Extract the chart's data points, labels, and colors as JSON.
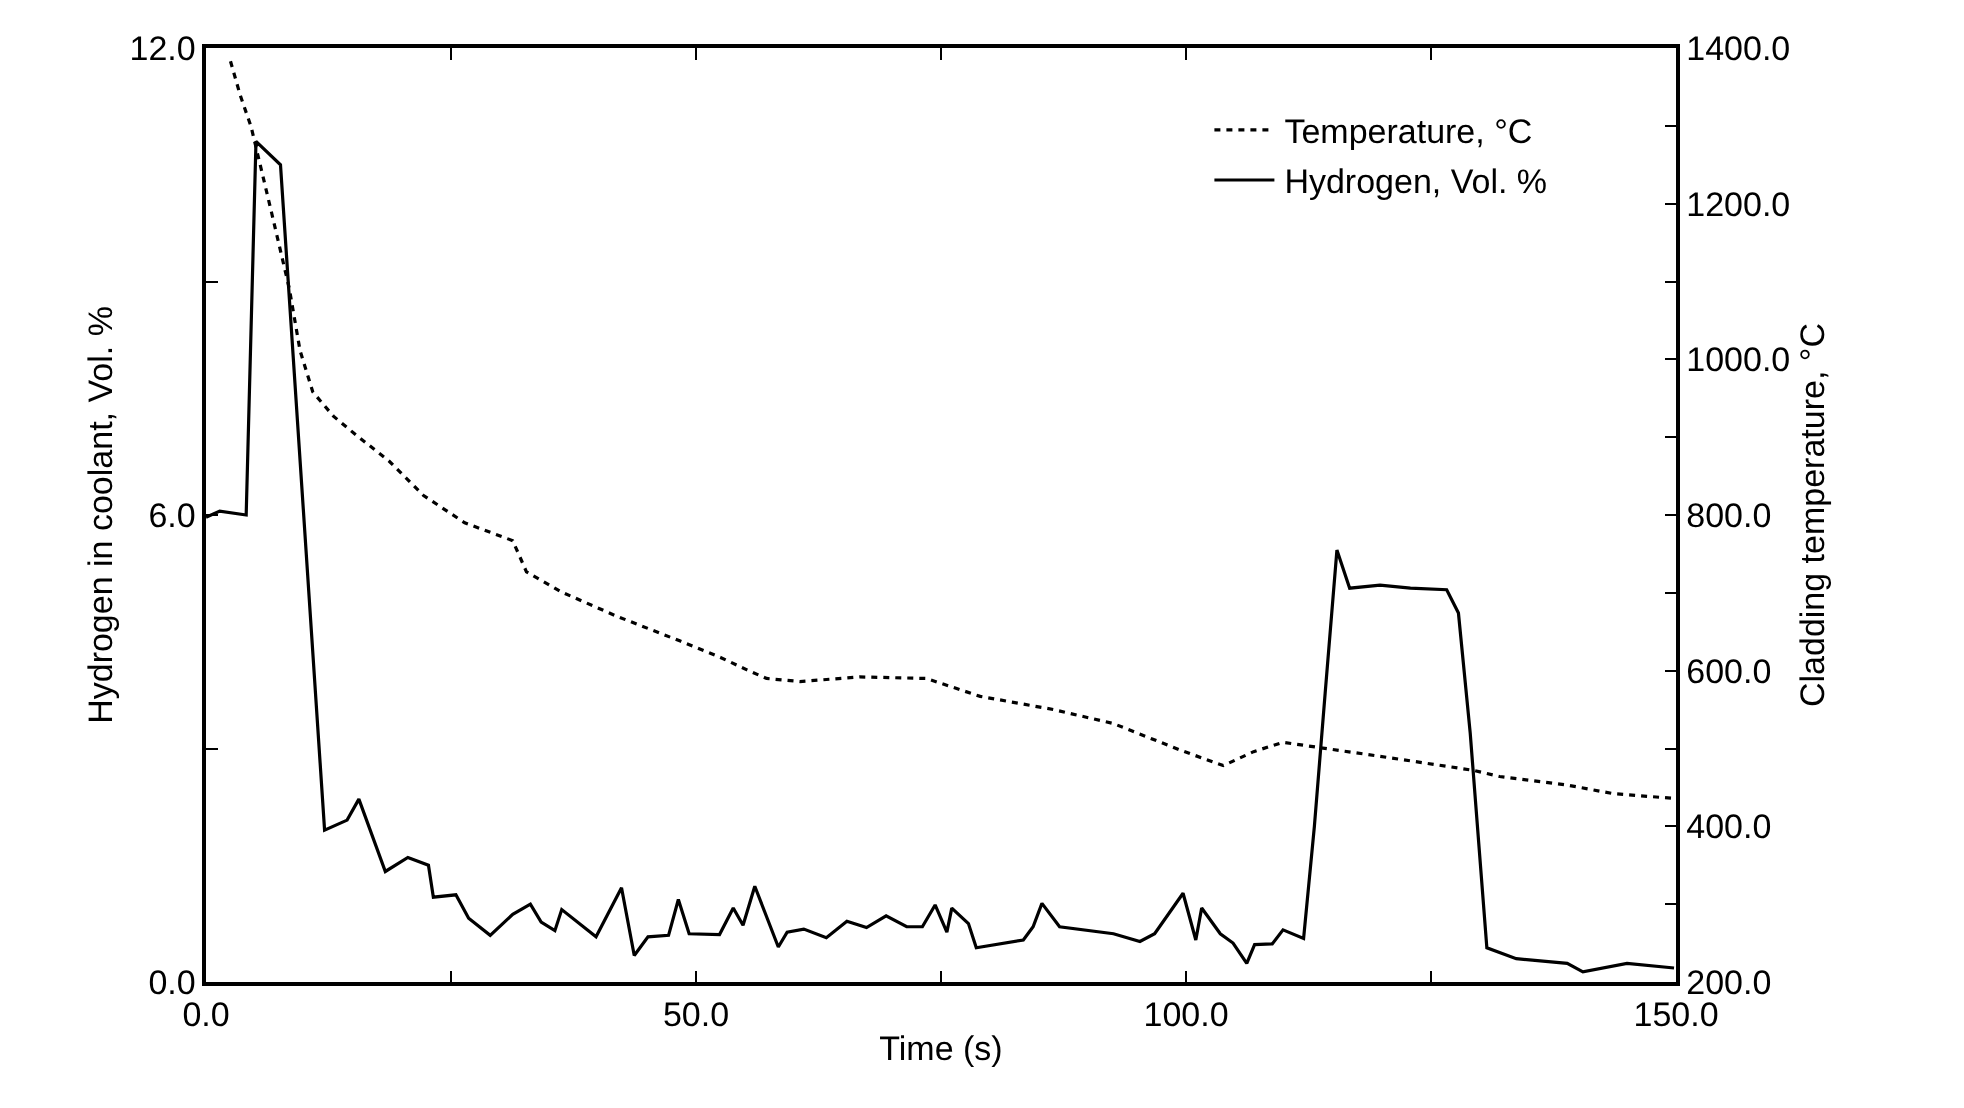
{
  "chart_data": {
    "type": "line",
    "xlabel": "Time (s)",
    "ylabel": "Hydrogen in coolant, Vol. %",
    "y2label": "Cladding temperature, °C",
    "xlim": [
      0,
      150
    ],
    "xticks": [
      {
        "value": 0,
        "label": "0.0"
      },
      {
        "value": 25,
        "label": null
      },
      {
        "value": 50,
        "label": "50.0"
      },
      {
        "value": 75,
        "label": null
      },
      {
        "value": 100,
        "label": "100.0"
      },
      {
        "value": 125,
        "label": null
      },
      {
        "value": 150,
        "label": "150.0"
      }
    ],
    "ylim": [
      0,
      12
    ],
    "yticks": [
      {
        "value": 0,
        "label": "0.0"
      },
      {
        "value": 3,
        "label": null
      },
      {
        "value": 6,
        "label": "6.0"
      },
      {
        "value": 9,
        "label": null
      },
      {
        "value": 12,
        "label": "12.0"
      }
    ],
    "y2lim": [
      200,
      1400
    ],
    "y2ticks": [
      {
        "value": 200,
        "label": "200.0"
      },
      {
        "value": 300,
        "label": null
      },
      {
        "value": 400,
        "label": "400.0"
      },
      {
        "value": 500,
        "label": null
      },
      {
        "value": 600,
        "label": "600.0"
      },
      {
        "value": 700,
        "label": null
      },
      {
        "value": 800,
        "label": "800.0"
      },
      {
        "value": 900,
        "label": null
      },
      {
        "value": 1000,
        "label": "1000.0"
      },
      {
        "value": 1100,
        "label": null
      },
      {
        "value": 1200,
        "label": "1200.0"
      },
      {
        "value": 1300,
        "label": null
      },
      {
        "value": 1400,
        "label": "1400.0"
      }
    ],
    "legend": "top right",
    "marker": "none",
    "series": [
      {
        "name": "Temperature, °C",
        "color": "#000000",
        "line_style": "dotted",
        "axis": "y2",
        "x": [
          2.5,
          3.5,
          4.6,
          6.7,
          8.5,
          9.6,
          10.9,
          13.0,
          15.1,
          18.7,
          22.2,
          26.4,
          31.3,
          32.7,
          36.3,
          41.9,
          48.4,
          52.5,
          55.2,
          57.2,
          60.6,
          66.7,
          73.5,
          79.0,
          86.5,
          92.6,
          99.4,
          103.8,
          106.9,
          109.9,
          113.7,
          119.8,
          129.3,
          132.0,
          138.9,
          143.6,
          149.7
        ],
        "values": [
          1383,
          1339,
          1299,
          1188,
          1091,
          1011,
          958,
          927,
          905,
          869,
          825,
          790,
          767,
          727,
          701,
          670,
          638,
          617,
          601,
          590,
          586,
          592,
          590,
          567,
          550,
          532,
          498,
          478,
          496,
          508,
          501,
          490,
          472,
          464,
          453,
          442,
          436
        ]
      },
      {
        "name": "Hydrogen, Vol. %",
        "color": "#000000",
        "line_style": "solid",
        "x": [
          0,
          1.4,
          4.1,
          5.1,
          7.6,
          12.1,
          14.4,
          15.6,
          18.3,
          20.6,
          22.7,
          23.2,
          25.5,
          26.8,
          29.0,
          31.3,
          33.1,
          34.2,
          35.6,
          36.3,
          39.8,
          42.4,
          43.7,
          45.1,
          47.2,
          48.2,
          49.3,
          52.4,
          53.8,
          54.8,
          56.0,
          58.4,
          59.3,
          61.0,
          63.3,
          65.4,
          67.4,
          69.4,
          71.5,
          73.1,
          74.4,
          75.6,
          76.1,
          77.8,
          78.6,
          83.4,
          84.4,
          85.3,
          87.1,
          92.6,
          95.3,
          96.8,
          99.7,
          101.0,
          101.6,
          103.5,
          104.8,
          106.2,
          107.0,
          108.8,
          109.9,
          112.0,
          113.1,
          114.2,
          115.4,
          116.7,
          119.8,
          122.9,
          126.6,
          127.8,
          129.0,
          130.7,
          133.7,
          138.9,
          140.5,
          145.0,
          149.8
        ],
        "values": [
          5.97,
          6.05,
          6.0,
          10.8,
          10.5,
          1.95,
          2.08,
          2.35,
          1.42,
          1.6,
          1.5,
          1.09,
          1.12,
          0.82,
          0.6,
          0.87,
          1.0,
          0.77,
          0.66,
          0.93,
          0.58,
          1.21,
          0.34,
          0.58,
          0.6,
          1.06,
          0.62,
          0.61,
          0.95,
          0.73,
          1.23,
          0.45,
          0.64,
          0.68,
          0.57,
          0.78,
          0.7,
          0.85,
          0.71,
          0.71,
          0.99,
          0.64,
          0.95,
          0.75,
          0.44,
          0.54,
          0.71,
          1.01,
          0.71,
          0.62,
          0.52,
          0.62,
          1.14,
          0.54,
          0.95,
          0.62,
          0.5,
          0.24,
          0.48,
          0.49,
          0.67,
          0.56,
          2.0,
          3.71,
          5.55,
          5.06,
          5.1,
          5.06,
          5.04,
          4.74,
          3.2,
          0.44,
          0.3,
          0.24,
          0.13,
          0.24,
          0.18
        ]
      }
    ]
  }
}
